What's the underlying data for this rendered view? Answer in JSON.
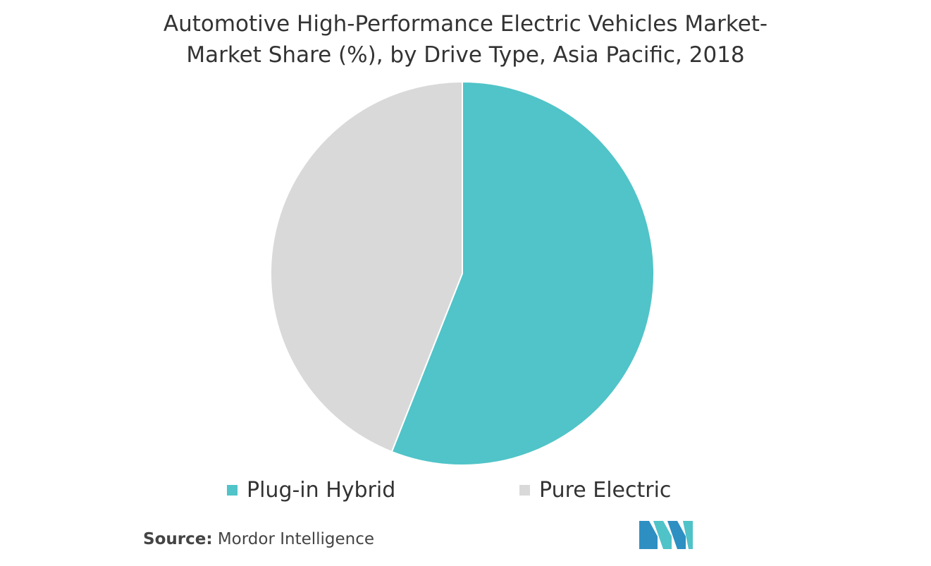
{
  "title": {
    "line1": "Automotive High-Performance Electric Vehicles Market-",
    "line2": "Market Share (%), by Drive Type, Asia Pacific, 2018"
  },
  "chart_data": {
    "type": "pie",
    "title": "Automotive High-Performance Electric Vehicles Market- Market Share (%), by Drive Type, Asia Pacific, 2018",
    "categories": [
      "Plug-in Hybrid",
      "Pure Electric"
    ],
    "values": [
      56,
      44
    ],
    "unit": "%",
    "colors": [
      "#50c4c8",
      "#d9d9d9"
    ],
    "start_angle_deg": 0,
    "direction": "clockwise",
    "legend_position": "bottom"
  },
  "legend": {
    "items": [
      {
        "label": "Plug-in Hybrid",
        "color": "#50c4c8"
      },
      {
        "label": "Pure Electric",
        "color": "#d9d9d9"
      }
    ]
  },
  "source": {
    "label": "Source:",
    "text": "Mordor Intelligence"
  },
  "logo": {
    "icon": "mordor-intelligence-logo",
    "colors": [
      "#2e8fc3",
      "#4fc3c8"
    ]
  }
}
